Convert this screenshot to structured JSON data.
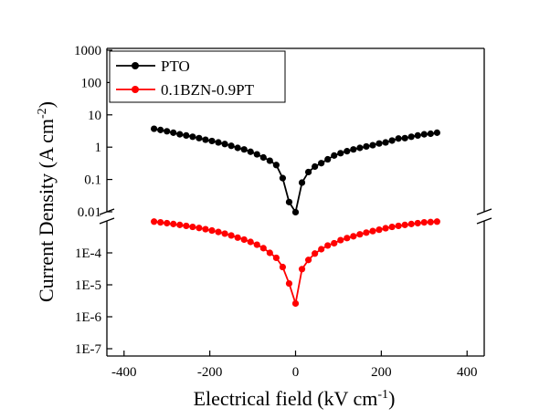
{
  "chart_data": {
    "type": "scatter",
    "connected": true,
    "y_scale": "log",
    "y_axis_break": true,
    "xlabel": "Electrical field (kV cm",
    "xlabel_sup": "-1",
    "xlabel_close": ")",
    "ylabel": "Current Density (A cm",
    "ylabel_sup": "-2",
    "ylabel_close": ")",
    "xlim": [
      -440,
      440
    ],
    "ylim_upper": [
      0.01,
      1000
    ],
    "ylim_lower": [
      1e-07,
      0.001
    ],
    "x_ticks": [
      "-400",
      "-200",
      "0",
      "200",
      "400"
    ],
    "y_ticks_upper": [
      "1000",
      "100",
      "10",
      "1",
      "0.1",
      "0.01"
    ],
    "y_ticks_lower": [
      "1E-4",
      "1E-5",
      "1E-6",
      "1E-7"
    ],
    "legend": {
      "position": "top-left"
    },
    "series": [
      {
        "name": "PTO",
        "color": "#000000",
        "x": [
          -330,
          -315,
          -300,
          -285,
          -270,
          -255,
          -240,
          -225,
          -210,
          -195,
          -180,
          -165,
          -150,
          -135,
          -120,
          -105,
          -90,
          -75,
          -60,
          -45,
          -30,
          -15,
          0,
          15,
          30,
          45,
          60,
          75,
          90,
          105,
          120,
          135,
          150,
          165,
          180,
          195,
          210,
          225,
          240,
          255,
          270,
          285,
          300,
          315,
          330
        ],
        "y": [
          3.7,
          3.4,
          3.1,
          2.8,
          2.5,
          2.3,
          2.1,
          1.9,
          1.7,
          1.55,
          1.4,
          1.25,
          1.1,
          0.95,
          0.85,
          0.72,
          0.6,
          0.48,
          0.38,
          0.28,
          0.11,
          0.02,
          0.009,
          0.08,
          0.17,
          0.25,
          0.32,
          0.42,
          0.55,
          0.65,
          0.75,
          0.85,
          0.95,
          1.05,
          1.15,
          1.3,
          1.4,
          1.6,
          1.85,
          1.9,
          2.1,
          2.3,
          2.5,
          2.6,
          2.8
        ]
      },
      {
        "name": "0.1BZN-0.9PT",
        "color": "#ff0000",
        "x": [
          -330,
          -315,
          -300,
          -285,
          -270,
          -255,
          -240,
          -225,
          -210,
          -195,
          -180,
          -165,
          -150,
          -135,
          -120,
          -105,
          -90,
          -75,
          -60,
          -45,
          -30,
          -15,
          0,
          15,
          30,
          45,
          60,
          75,
          90,
          105,
          120,
          135,
          150,
          165,
          180,
          195,
          210,
          225,
          240,
          255,
          270,
          285,
          300,
          315,
          330
        ],
        "y": [
          0.00095,
          0.0009,
          0.00085,
          0.0008,
          0.00075,
          0.0007,
          0.00065,
          0.0006,
          0.00055,
          0.0005,
          0.00045,
          0.0004,
          0.00035,
          0.0003,
          0.00026,
          0.00022,
          0.00018,
          0.00014,
          0.0001,
          7e-05,
          3.6e-05,
          1.1e-05,
          2.6e-06,
          3.1e-05,
          6e-05,
          9.5e-05,
          0.00013,
          0.00017,
          0.0002,
          0.00025,
          0.00029,
          0.00033,
          0.00038,
          0.00043,
          0.00048,
          0.00053,
          0.00059,
          0.00065,
          0.0007,
          0.00075,
          0.0008,
          0.00085,
          0.0009,
          0.00092,
          0.00095
        ]
      }
    ]
  }
}
